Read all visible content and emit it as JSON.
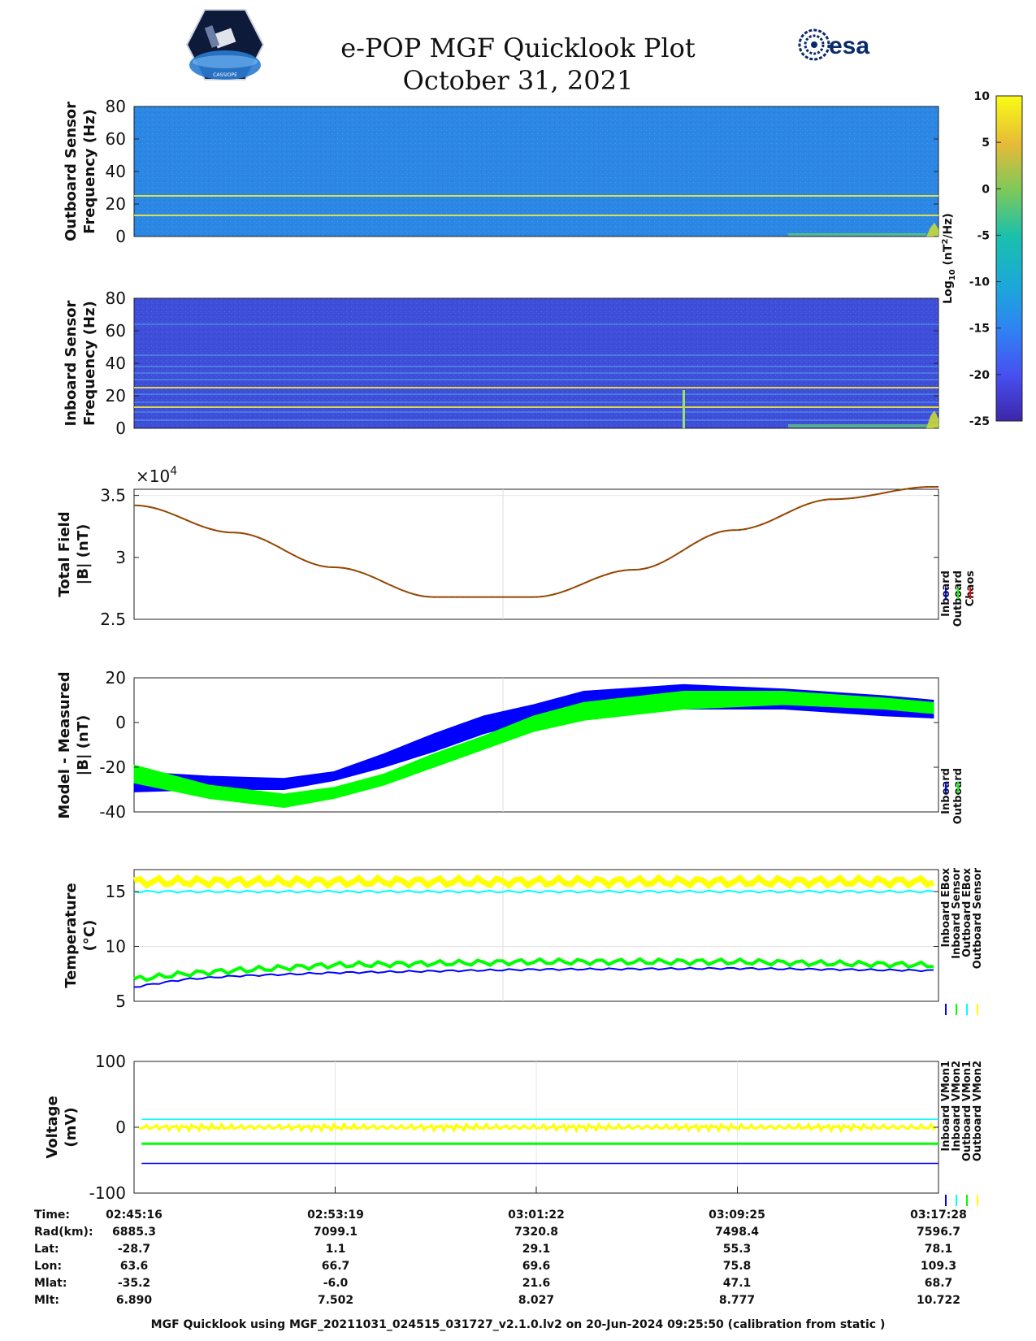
{
  "header": {
    "title": "e-POP MGF Quicklook Plot",
    "date": "October 31, 2021",
    "agency_logo_text": "esa",
    "mission_logo_text": "CASSIOPE"
  },
  "chart_data": [
    {
      "type": "heatmap",
      "name": "Outboard spectrogram",
      "ylabel_line1": "Outboard Sensor",
      "ylabel_line2": "Frequency (Hz)",
      "ylim": [
        0,
        80
      ],
      "yticks": [
        "80",
        "60",
        "40",
        "20",
        "0"
      ],
      "line_frequencies_hz": [
        13,
        25
      ]
    },
    {
      "type": "heatmap",
      "name": "Inboard spectrogram",
      "ylabel_line1": "Inboard Sensor",
      "ylabel_line2": "Frequency (Hz)",
      "ylim": [
        0,
        80
      ],
      "yticks": [
        "80",
        "60",
        "40",
        "20",
        "0"
      ],
      "line_frequencies_hz": [
        5,
        10,
        13,
        16,
        21,
        25,
        30,
        34,
        38,
        45,
        64
      ]
    },
    {
      "type": "colorbar",
      "label": "Log10 (nT²/Hz)",
      "clim": [
        -25,
        10
      ],
      "ticks": [
        "10",
        "5",
        "0",
        "-5",
        "-10",
        "-15",
        "-20",
        "-25"
      ]
    },
    {
      "type": "line",
      "name": "Total field",
      "ylabel_line1": "Total Field",
      "ylabel_line2": "|B| (nT)",
      "exponent": "×10",
      "exponent_power": "4",
      "ylim": [
        2.5,
        3.55
      ],
      "yticks": [
        "3.5",
        "3",
        "2.5"
      ],
      "series": [
        {
          "name": "Inboard",
          "color": "#0000ff"
        },
        {
          "name": "Outboard",
          "color": "#00ff00"
        },
        {
          "name": "Chaos",
          "color": "#ff0000"
        }
      ],
      "x_minutes": [
        0,
        4,
        8,
        12,
        16,
        20,
        24,
        28,
        32
      ],
      "values": [
        3.42,
        3.2,
        2.92,
        2.68,
        2.68,
        2.9,
        3.22,
        3.47,
        3.57
      ]
    },
    {
      "type": "area",
      "name": "Model - measured",
      "ylabel_line1": "Model - Measured",
      "ylabel_line2": "|B| (nT)",
      "ylim": [
        -40,
        20
      ],
      "yticks": [
        "20",
        "0",
        "-20",
        "-40"
      ],
      "series": [
        {
          "name": "Inboard",
          "color": "#0000ff",
          "x_minutes": [
            0,
            3,
            6,
            8,
            10,
            12,
            14,
            16,
            18,
            22,
            26,
            30,
            32
          ],
          "low": [
            -31,
            -30,
            -30,
            -26,
            -20,
            -13,
            -5,
            1,
            4,
            6,
            6,
            3,
            2
          ],
          "high": [
            -22,
            -24,
            -25,
            -22,
            -14,
            -5,
            3,
            8,
            14,
            17,
            15,
            12,
            10
          ]
        },
        {
          "name": "Outboard",
          "color": "#00ff00",
          "x_minutes": [
            0,
            3,
            6,
            8,
            10,
            12,
            14,
            16,
            18,
            22,
            26,
            30,
            32
          ],
          "low": [
            -27,
            -34,
            -38,
            -34,
            -28,
            -20,
            -12,
            -4,
            1,
            6,
            8,
            6,
            4
          ],
          "high": [
            -19,
            -28,
            -32,
            -29,
            -23,
            -14,
            -6,
            3,
            9,
            14,
            14,
            11,
            9
          ]
        }
      ]
    },
    {
      "type": "line",
      "name": "Temperature",
      "ylabel_line1": "Temperature",
      "ylabel_line2": "(°C)",
      "ylim": [
        5,
        17
      ],
      "yticks": [
        "15",
        "10",
        "5"
      ],
      "series": [
        {
          "name": "Inboard EBox",
          "color": "#0000ff",
          "x_minutes": [
            0,
            2,
            4,
            8,
            16,
            24,
            32
          ],
          "values": [
            6.3,
            7.0,
            7.3,
            7.6,
            7.9,
            8.0,
            7.8
          ]
        },
        {
          "name": "Inboard Sensor",
          "color": "#00ff00",
          "x_minutes": [
            0,
            2,
            4,
            8,
            16,
            24,
            32
          ],
          "values": [
            7.0,
            7.5,
            7.8,
            8.3,
            8.6,
            8.6,
            8.3
          ]
        },
        {
          "name": "Outboard EBox",
          "color": "#00ffff",
          "x_minutes": [
            0,
            32
          ],
          "values": [
            15.0,
            15.0
          ]
        },
        {
          "name": "Outboard Sensor",
          "color": "#ffff00",
          "x_minutes": [
            0,
            32
          ],
          "values": [
            15.9,
            15.9
          ]
        }
      ]
    },
    {
      "type": "line",
      "name": "Voltage",
      "ylabel_line1": "Voltage",
      "ylabel_line2": "(mV)",
      "ylim": [
        -100,
        100
      ],
      "yticks": [
        "100",
        "0",
        "-100"
      ],
      "series": [
        {
          "name": "Inboard VMon1",
          "color": "#0000ff",
          "values": [
            -55
          ]
        },
        {
          "name": "Inboard VMon2",
          "color": "#00ffff",
          "values": [
            12
          ]
        },
        {
          "name": "Outboard VMon1",
          "color": "#00ff00",
          "values": [
            -25
          ]
        },
        {
          "name": "Outboard VMon2",
          "color": "#ffff00",
          "values": [
            0
          ]
        }
      ]
    }
  ],
  "ephemeris": {
    "labels": [
      "Time:",
      "Rad(km):",
      "Lat:",
      "Lon:",
      "Mlat:",
      "Mlt:"
    ],
    "columns": [
      [
        "02:45:16",
        "6885.3",
        "-28.7",
        "63.6",
        "-35.2",
        "6.890"
      ],
      [
        "02:53:19",
        "7099.1",
        "1.1",
        "66.7",
        "-6.0",
        "7.502"
      ],
      [
        "03:01:22",
        "7320.8",
        "29.1",
        "69.6",
        "21.6",
        "8.027"
      ],
      [
        "03:09:25",
        "7498.4",
        "55.3",
        "75.8",
        "47.1",
        "8.777"
      ],
      [
        "03:17:28",
        "7596.7",
        "78.1",
        "109.3",
        "68.7",
        "10.722"
      ]
    ]
  },
  "footer": "MGF Quicklook using MGF_20211031_024515_031727_v2.1.0.lv2 on 20-Jun-2024 09:25:50 (calibration from static )"
}
